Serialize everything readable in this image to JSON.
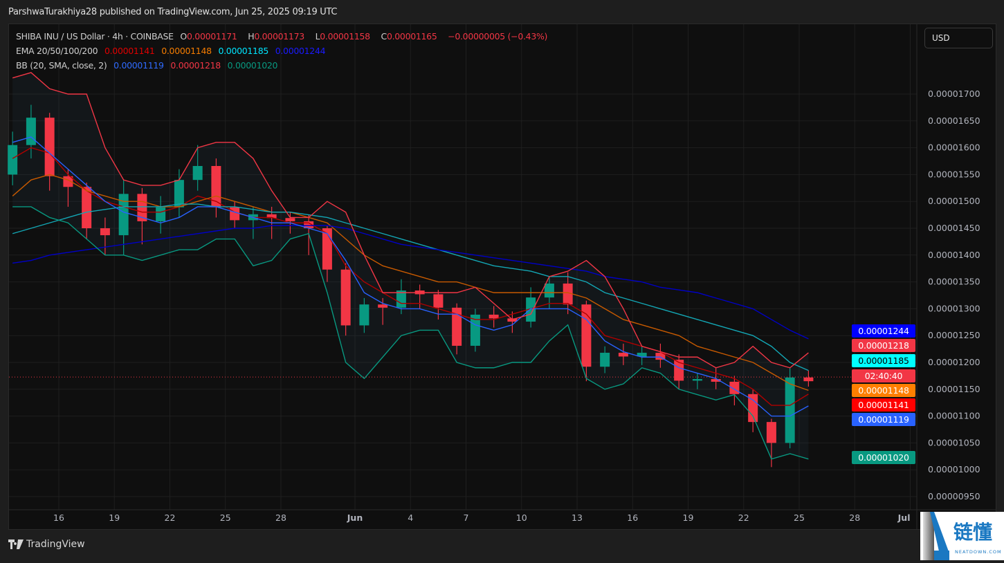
{
  "header": {
    "published": "ParshwaTurakhiya28 published on TradingView.com, Jun 25, 2025 09:19 UTC"
  },
  "legend": {
    "symbol": "SHIBA INU / US Dollar · 4h · COINBASE",
    "o_label": "O",
    "o": "0.00001171",
    "h_label": "H",
    "h": "0.00001173",
    "l_label": "L",
    "l": "0.00001158",
    "c_label": "C",
    "c": "0.00001165",
    "change": "−0.00000005 (−0.43%)",
    "ema_label": "EMA 20/50/100/200",
    "ema20": "0.00001141",
    "ema50": "0.00001148",
    "ema100": "0.00001185",
    "ema200": "0.00001244",
    "bb_label": "BB (20, SMA, close, 2)",
    "bb_basis": "0.00001119",
    "bb_upper": "0.00001218",
    "bb_lower": "0.00001020"
  },
  "currency_button": "USD",
  "price_tags": {
    "ema200": "0.00001244",
    "bb_upper": "0.00001218",
    "ema100": "0.00001185",
    "countdown": "02:40:40",
    "ema50": "0.00001148",
    "ema20": "0.00001141",
    "bb_basis": "0.00001119",
    "bb_lower": "0.00001020"
  },
  "colors": {
    "up": "#089981",
    "down": "#f23645",
    "ema20": "#b00000",
    "ema50": "#f57c00",
    "ema100": "#00bcd4",
    "ema200": "#0000ff",
    "bb_basis": "#2962ff",
    "bb_upper": "#f23645",
    "bb_lower": "#089981"
  },
  "footer": {
    "brand": "TradingView"
  },
  "watermark": {
    "text": "链懂",
    "sub": "NEATDOWN.COM"
  },
  "chart_data": {
    "type": "candlestick",
    "symbol": "SHIBA INU / US Dollar",
    "interval": "4h",
    "y_ticks": [
      "0.00001700",
      "0.00001650",
      "0.00001600",
      "0.00001550",
      "0.00001500",
      "0.00001450",
      "0.00001400",
      "0.00001350",
      "0.00001300",
      "0.00001250",
      "0.00001200",
      "0.00001150",
      "0.00001100",
      "0.00001050",
      "0.00001000",
      "0.00000950"
    ],
    "ylim": [
      9.3e-06,
      1.78e-05
    ],
    "x_ticks": [
      {
        "label": "16",
        "date": "2025-05-16"
      },
      {
        "label": "19",
        "date": "2025-05-19"
      },
      {
        "label": "22",
        "date": "2025-05-22"
      },
      {
        "label": "25",
        "date": "2025-05-25"
      },
      {
        "label": "28",
        "date": "2025-05-28"
      },
      {
        "label": "Jun",
        "date": "2025-06-01"
      },
      {
        "label": "4",
        "date": "2025-06-04"
      },
      {
        "label": "7",
        "date": "2025-06-07"
      },
      {
        "label": "10",
        "date": "2025-06-10"
      },
      {
        "label": "13",
        "date": "2025-06-13"
      },
      {
        "label": "16",
        "date": "2025-06-16"
      },
      {
        "label": "19",
        "date": "2025-06-19"
      },
      {
        "label": "22",
        "date": "2025-06-22"
      },
      {
        "label": "25",
        "date": "2025-06-25"
      },
      {
        "label": "28",
        "date": "2025-06-28"
      },
      {
        "label": "Jul",
        "date": "2025-07-01"
      }
    ],
    "xlim": [
      "2025-05-13",
      "2025-07-02"
    ],
    "grid": true,
    "last_price": 1.165e-05,
    "dates": [
      "2025-05-13",
      "2025-05-14",
      "2025-05-15",
      "2025-05-16",
      "2025-05-17",
      "2025-05-18",
      "2025-05-19",
      "2025-05-20",
      "2025-05-21",
      "2025-05-22",
      "2025-05-23",
      "2025-05-24",
      "2025-05-25",
      "2025-05-26",
      "2025-05-27",
      "2025-05-28",
      "2025-05-29",
      "2025-05-30",
      "2025-05-31",
      "2025-06-01",
      "2025-06-02",
      "2025-06-03",
      "2025-06-04",
      "2025-06-05",
      "2025-06-06",
      "2025-06-07",
      "2025-06-08",
      "2025-06-09",
      "2025-06-10",
      "2025-06-11",
      "2025-06-12",
      "2025-06-13",
      "2025-06-14",
      "2025-06-15",
      "2025-06-16",
      "2025-06-17",
      "2025-06-18",
      "2025-06-19",
      "2025-06-20",
      "2025-06-21",
      "2025-06-22",
      "2025-06-23",
      "2025-06-24",
      "2025-06-25"
    ],
    "ohlc": [
      [
        1.55e-05,
        1.63e-05,
        1.53e-05,
        1.605e-05
      ],
      [
        1.605e-05,
        1.68e-05,
        1.58e-05,
        1.656e-05
      ],
      [
        1.656e-05,
        1.665e-05,
        1.52e-05,
        1.547e-05
      ],
      [
        1.547e-05,
        1.56e-05,
        1.49e-05,
        1.527e-05
      ],
      [
        1.527e-05,
        1.535e-05,
        1.43e-05,
        1.45e-05
      ],
      [
        1.45e-05,
        1.47e-05,
        1.4e-05,
        1.437e-05
      ],
      [
        1.437e-05,
        1.54e-05,
        1.4e-05,
        1.514e-05
      ],
      [
        1.514e-05,
        1.525e-05,
        1.42e-05,
        1.463e-05
      ],
      [
        1.463e-05,
        1.51e-05,
        1.44e-05,
        1.489e-05
      ],
      [
        1.489e-05,
        1.56e-05,
        1.47e-05,
        1.54e-05
      ],
      [
        1.54e-05,
        1.605e-05,
        1.52e-05,
        1.566e-05
      ],
      [
        1.566e-05,
        1.58e-05,
        1.47e-05,
        1.489e-05
      ],
      [
        1.489e-05,
        1.5e-05,
        1.45e-05,
        1.465e-05
      ],
      [
        1.465e-05,
        1.49e-05,
        1.43e-05,
        1.476e-05
      ],
      [
        1.476e-05,
        1.49e-05,
        1.43e-05,
        1.469e-05
      ],
      [
        1.469e-05,
        1.48e-05,
        1.44e-05,
        1.463e-05
      ],
      [
        1.463e-05,
        1.475e-05,
        1.4e-05,
        1.45e-05
      ],
      [
        1.45e-05,
        1.455e-05,
        1.35e-05,
        1.373e-05
      ],
      [
        1.373e-05,
        1.385e-05,
        1.25e-05,
        1.269e-05
      ],
      [
        1.269e-05,
        1.32e-05,
        1.255e-05,
        1.308e-05
      ],
      [
        1.308e-05,
        1.32e-05,
        1.27e-05,
        1.302e-05
      ],
      [
        1.302e-05,
        1.355e-05,
        1.29e-05,
        1.334e-05
      ],
      [
        1.334e-05,
        1.345e-05,
        1.3e-05,
        1.327e-05
      ],
      [
        1.327e-05,
        1.335e-05,
        1.28e-05,
        1.302e-05
      ],
      [
        1.302e-05,
        1.31e-05,
        1.215e-05,
        1.231e-05
      ],
      [
        1.231e-05,
        1.3e-05,
        1.22e-05,
        1.289e-05
      ],
      [
        1.289e-05,
        1.305e-05,
        1.265e-05,
        1.282e-05
      ],
      [
        1.282e-05,
        1.295e-05,
        1.255e-05,
        1.276e-05
      ],
      [
        1.276e-05,
        1.34e-05,
        1.265e-05,
        1.321e-05
      ],
      [
        1.321e-05,
        1.36e-05,
        1.3e-05,
        1.347e-05
      ],
      [
        1.347e-05,
        1.368e-05,
        1.29e-05,
        1.308e-05
      ],
      [
        1.308e-05,
        1.315e-05,
        1.165e-05,
        1.192e-05
      ],
      [
        1.192e-05,
        1.23e-05,
        1.18e-05,
        1.218e-05
      ],
      [
        1.218e-05,
        1.235e-05,
        1.195e-05,
        1.211e-05
      ],
      [
        1.211e-05,
        1.23e-05,
        1.195e-05,
        1.218e-05
      ],
      [
        1.218e-05,
        1.235e-05,
        1.19e-05,
        1.205e-05
      ],
      [
        1.205e-05,
        1.215e-05,
        1.15e-05,
        1.166e-05
      ],
      [
        1.166e-05,
        1.18e-05,
        1.15e-05,
        1.169e-05
      ],
      [
        1.169e-05,
        1.19e-05,
        1.15e-05,
        1.164e-05
      ],
      [
        1.164e-05,
        1.175e-05,
        1.12e-05,
        1.141e-05
      ],
      [
        1.141e-05,
        1.15e-05,
        1.07e-05,
        1.089e-05
      ],
      [
        1.089e-05,
        1.095e-05,
        1.005e-05,
        1.05e-05
      ],
      [
        1.05e-05,
        1.19e-05,
        1.04e-05,
        1.172e-05
      ],
      [
        1.172e-05,
        1.185e-05,
        1.155e-05,
        1.165e-05
      ]
    ],
    "series": [
      {
        "name": "EMA 20",
        "key": "ema20",
        "values": [
          1.58e-05,
          1.6e-05,
          1.59e-05,
          1.55e-05,
          1.52e-05,
          1.5e-05,
          1.49e-05,
          1.48e-05,
          1.48e-05,
          1.49e-05,
          1.51e-05,
          1.5e-05,
          1.48e-05,
          1.47e-05,
          1.47e-05,
          1.46e-05,
          1.46e-05,
          1.44e-05,
          1.38e-05,
          1.35e-05,
          1.33e-05,
          1.31e-05,
          1.31e-05,
          1.3e-05,
          1.29e-05,
          1.28e-05,
          1.28e-05,
          1.29e-05,
          1.3e-05,
          1.31e-05,
          1.31e-05,
          1.29e-05,
          1.25e-05,
          1.24e-05,
          1.23e-05,
          1.22e-05,
          1.2e-05,
          1.19e-05,
          1.18e-05,
          1.17e-05,
          1.15e-05,
          1.12e-05,
          1.12e-05,
          1.141e-05
        ]
      },
      {
        "name": "EMA 50",
        "key": "ema50",
        "values": [
          1.51e-05,
          1.54e-05,
          1.55e-05,
          1.54e-05,
          1.52e-05,
          1.51e-05,
          1.5e-05,
          1.5e-05,
          1.49e-05,
          1.49e-05,
          1.5e-05,
          1.51e-05,
          1.5e-05,
          1.49e-05,
          1.48e-05,
          1.48e-05,
          1.47e-05,
          1.46e-05,
          1.43e-05,
          1.4e-05,
          1.38e-05,
          1.37e-05,
          1.36e-05,
          1.35e-05,
          1.35e-05,
          1.34e-05,
          1.33e-05,
          1.33e-05,
          1.33e-05,
          1.33e-05,
          1.33e-05,
          1.32e-05,
          1.3e-05,
          1.28e-05,
          1.27e-05,
          1.26e-05,
          1.25e-05,
          1.23e-05,
          1.22e-05,
          1.21e-05,
          1.2e-05,
          1.18e-05,
          1.16e-05,
          1.148e-05
        ]
      },
      {
        "name": "EMA 100",
        "key": "ema100",
        "values": [
          1.44e-05,
          1.45e-05,
          1.46e-05,
          1.47e-05,
          1.48e-05,
          1.485e-05,
          1.49e-05,
          1.49e-05,
          1.49e-05,
          1.495e-05,
          1.495e-05,
          1.49e-05,
          1.49e-05,
          1.485e-05,
          1.48e-05,
          1.48e-05,
          1.475e-05,
          1.47e-05,
          1.46e-05,
          1.45e-05,
          1.44e-05,
          1.43e-05,
          1.42e-05,
          1.41e-05,
          1.4e-05,
          1.39e-05,
          1.38e-05,
          1.375e-05,
          1.37e-05,
          1.36e-05,
          1.36e-05,
          1.35e-05,
          1.33e-05,
          1.32e-05,
          1.31e-05,
          1.3e-05,
          1.29e-05,
          1.28e-05,
          1.27e-05,
          1.26e-05,
          1.25e-05,
          1.23e-05,
          1.2e-05,
          1.185e-05
        ]
      },
      {
        "name": "EMA 200",
        "key": "ema200",
        "values": [
          1.385e-05,
          1.39e-05,
          1.4e-05,
          1.405e-05,
          1.41e-05,
          1.415e-05,
          1.42e-05,
          1.425e-05,
          1.43e-05,
          1.435e-05,
          1.44e-05,
          1.445e-05,
          1.45e-05,
          1.45e-05,
          1.455e-05,
          1.455e-05,
          1.455e-05,
          1.455e-05,
          1.45e-05,
          1.44e-05,
          1.43e-05,
          1.42e-05,
          1.415e-05,
          1.41e-05,
          1.405e-05,
          1.4e-05,
          1.395e-05,
          1.39e-05,
          1.385e-05,
          1.38e-05,
          1.375e-05,
          1.37e-05,
          1.36e-05,
          1.355e-05,
          1.35e-05,
          1.34e-05,
          1.335e-05,
          1.33e-05,
          1.32e-05,
          1.31e-05,
          1.3e-05,
          1.28e-05,
          1.26e-05,
          1.244e-05
        ]
      },
      {
        "name": "BB basis",
        "key": "bb_basis",
        "values": [
          1.61e-05,
          1.62e-05,
          1.59e-05,
          1.56e-05,
          1.53e-05,
          1.5e-05,
          1.48e-05,
          1.47e-05,
          1.46e-05,
          1.47e-05,
          1.49e-05,
          1.49e-05,
          1.48e-05,
          1.47e-05,
          1.46e-05,
          1.46e-05,
          1.45e-05,
          1.44e-05,
          1.39e-05,
          1.33e-05,
          1.31e-05,
          1.3e-05,
          1.3e-05,
          1.29e-05,
          1.29e-05,
          1.27e-05,
          1.26e-05,
          1.27e-05,
          1.3e-05,
          1.3e-05,
          1.3e-05,
          1.28e-05,
          1.24e-05,
          1.22e-05,
          1.21e-05,
          1.21e-05,
          1.19e-05,
          1.18e-05,
          1.17e-05,
          1.15e-05,
          1.13e-05,
          1.1e-05,
          1.1e-05,
          1.119e-05
        ]
      },
      {
        "name": "BB upper",
        "key": "bb_upper",
        "values": [
          1.73e-05,
          1.74e-05,
          1.71e-05,
          1.7e-05,
          1.7e-05,
          1.6e-05,
          1.54e-05,
          1.53e-05,
          1.53e-05,
          1.54e-05,
          1.6e-05,
          1.61e-05,
          1.61e-05,
          1.58e-05,
          1.52e-05,
          1.47e-05,
          1.47e-05,
          1.5e-05,
          1.48e-05,
          1.4e-05,
          1.33e-05,
          1.33e-05,
          1.33e-05,
          1.33e-05,
          1.33e-05,
          1.34e-05,
          1.31e-05,
          1.28e-05,
          1.29e-05,
          1.36e-05,
          1.37e-05,
          1.39e-05,
          1.36e-05,
          1.3e-05,
          1.23e-05,
          1.22e-05,
          1.21e-05,
          1.21e-05,
          1.19e-05,
          1.2e-05,
          1.23e-05,
          1.2e-05,
          1.19e-05,
          1.218e-05
        ]
      },
      {
        "name": "BB lower",
        "key": "bb_lower",
        "values": [
          1.49e-05,
          1.49e-05,
          1.47e-05,
          1.46e-05,
          1.43e-05,
          1.4e-05,
          1.4e-05,
          1.39e-05,
          1.4e-05,
          1.41e-05,
          1.41e-05,
          1.43e-05,
          1.43e-05,
          1.38e-05,
          1.39e-05,
          1.43e-05,
          1.44e-05,
          1.33e-05,
          1.2e-05,
          1.17e-05,
          1.21e-05,
          1.25e-05,
          1.26e-05,
          1.26e-05,
          1.2e-05,
          1.19e-05,
          1.19e-05,
          1.2e-05,
          1.2e-05,
          1.24e-05,
          1.27e-05,
          1.17e-05,
          1.15e-05,
          1.16e-05,
          1.19e-05,
          1.18e-05,
          1.15e-05,
          1.14e-05,
          1.13e-05,
          1.14e-05,
          1.1e-05,
          1.02e-05,
          1.03e-05,
          1.02e-05
        ]
      }
    ]
  }
}
